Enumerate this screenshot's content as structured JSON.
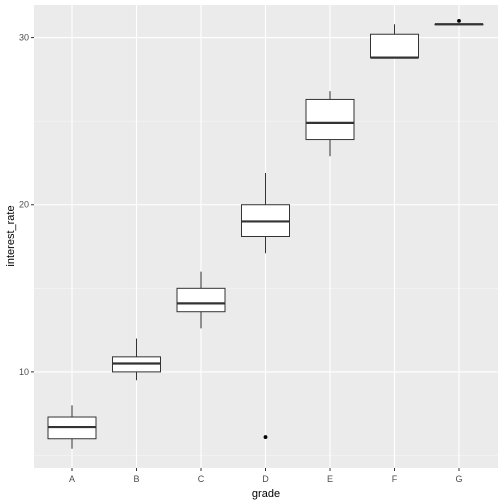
{
  "chart_data": {
    "type": "boxplot",
    "xlabel": "grade",
    "ylabel": "interest_rate",
    "categories": [
      "A",
      "B",
      "C",
      "D",
      "E",
      "F",
      "G"
    ],
    "y_ticks": [
      10,
      20,
      30
    ],
    "ylim": [
      4.25,
      31.95
    ],
    "grid": true,
    "boxes": [
      {
        "category": "A",
        "whisker_low": 5.4,
        "q1": 6.0,
        "median": 6.7,
        "q3": 7.3,
        "whisker_high": 8.0,
        "outliers": []
      },
      {
        "category": "B",
        "whisker_low": 9.5,
        "q1": 10.0,
        "median": 10.5,
        "q3": 10.9,
        "whisker_high": 12.0,
        "outliers": []
      },
      {
        "category": "C",
        "whisker_low": 12.6,
        "q1": 13.6,
        "median": 14.1,
        "q3": 15.0,
        "whisker_high": 16.0,
        "outliers": []
      },
      {
        "category": "D",
        "whisker_low": 17.1,
        "q1": 18.1,
        "median": 19.0,
        "q3": 20.0,
        "whisker_high": 21.9,
        "outliers": [
          6.1
        ]
      },
      {
        "category": "E",
        "whisker_low": 22.9,
        "q1": 23.9,
        "median": 24.9,
        "q3": 26.3,
        "whisker_high": 26.8,
        "outliers": []
      },
      {
        "category": "F",
        "whisker_low": 28.8,
        "q1": 28.8,
        "median": 28.8,
        "q3": 30.2,
        "whisker_high": 30.8,
        "outliers": []
      },
      {
        "category": "G",
        "whisker_low": 30.8,
        "q1": 30.8,
        "median": 30.8,
        "q3": 30.8,
        "whisker_high": 30.8,
        "outliers": [
          31.0
        ]
      }
    ],
    "colors": {
      "panel_background": "#ebebeb",
      "grid_major": "#ffffff",
      "grid_minor": "#f5f5f5",
      "box_fill": "#ffffff",
      "box_stroke": "#333333",
      "outlier": "#000000",
      "tick": "#333333"
    }
  }
}
